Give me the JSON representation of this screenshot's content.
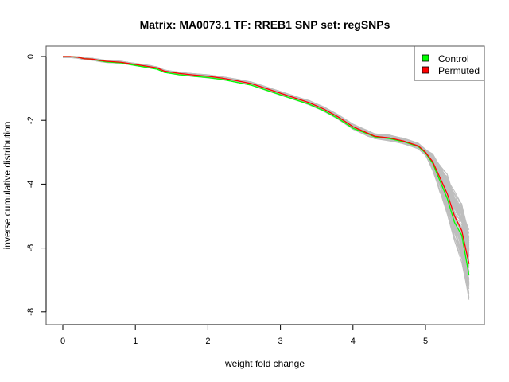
{
  "chart_data": {
    "type": "line",
    "title": "Matrix: MA0073.1 TF: RREB1 SNP set: regSNPs",
    "xlabel": "weight fold change",
    "ylabel": "inverse cumulative distribution",
    "xlim": [
      0,
      5.6
    ],
    "ylim": [
      -8,
      0
    ],
    "x_ticks": [
      0,
      1,
      2,
      3,
      4,
      5
    ],
    "x_tick_labels": [
      "0",
      "1",
      "2",
      "3",
      "4",
      "5"
    ],
    "y_ticks": [
      0,
      -2,
      -4,
      -6,
      -8
    ],
    "y_tick_labels": [
      "0",
      "-2",
      "-4",
      "-6",
      "-8"
    ],
    "grid": false,
    "legend": {
      "placement": "top-right",
      "entries": [
        "Control",
        "Permuted"
      ]
    },
    "background_series_color": "#bebebe",
    "x": [
      0,
      0.1,
      0.2,
      0.3,
      0.4,
      0.5,
      0.6,
      0.8,
      1.0,
      1.2,
      1.3,
      1.4,
      1.6,
      1.8,
      2.0,
      2.2,
      2.4,
      2.6,
      2.8,
      3.0,
      3.2,
      3.4,
      3.6,
      3.8,
      4.0,
      4.2,
      4.3,
      4.5,
      4.7,
      4.9,
      5.0,
      5.1,
      5.2,
      5.3,
      5.4,
      5.5,
      5.6
    ],
    "series": [
      {
        "name": "Control",
        "color": "#00ff00",
        "values": [
          0,
          0,
          -0.02,
          -0.07,
          -0.08,
          -0.13,
          -0.17,
          -0.2,
          -0.28,
          -0.36,
          -0.4,
          -0.5,
          -0.57,
          -0.62,
          -0.66,
          -0.72,
          -0.81,
          -0.9,
          -1.05,
          -1.2,
          -1.35,
          -1.5,
          -1.7,
          -1.95,
          -2.25,
          -2.42,
          -2.52,
          -2.57,
          -2.67,
          -2.82,
          -3.02,
          -3.35,
          -3.9,
          -4.45,
          -5.2,
          -5.6,
          -6.85
        ]
      },
      {
        "name": "Permuted",
        "color": "#ff0000",
        "values": [
          0,
          0,
          -0.02,
          -0.07,
          -0.08,
          -0.12,
          -0.15,
          -0.18,
          -0.25,
          -0.32,
          -0.36,
          -0.46,
          -0.53,
          -0.58,
          -0.62,
          -0.68,
          -0.76,
          -0.85,
          -1.0,
          -1.15,
          -1.3,
          -1.45,
          -1.65,
          -1.9,
          -2.2,
          -2.4,
          -2.5,
          -2.55,
          -2.65,
          -2.8,
          -3.0,
          -3.3,
          -3.8,
          -4.3,
          -5.0,
          -5.45,
          -6.5
        ]
      }
    ]
  }
}
